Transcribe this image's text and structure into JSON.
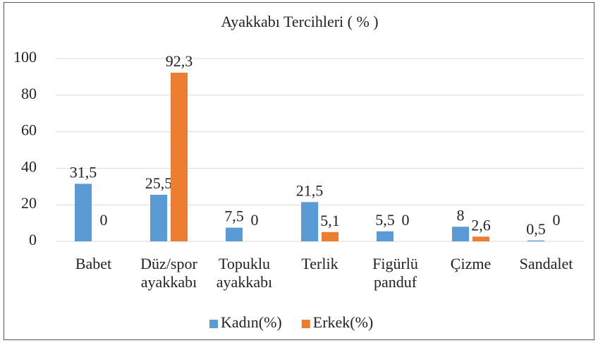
{
  "chart_data": {
    "type": "bar",
    "title": "Ayakkabı Tercihleri ( % )",
    "categories": [
      [
        "Babet"
      ],
      [
        "Düz/spor",
        "ayakkabı"
      ],
      [
        "Topuklu",
        "ayakkabı"
      ],
      [
        "Terlik"
      ],
      [
        "Figürlü",
        "panduf"
      ],
      [
        "Çizme"
      ],
      [
        "Sandalet"
      ]
    ],
    "series": [
      {
        "name": "Kadın(%)",
        "color": "#5b9bd5",
        "values": [
          31.5,
          25.5,
          7.5,
          21.5,
          5.5,
          8,
          0.5
        ],
        "value_labels": [
          "31,5",
          "25,5",
          "7,5",
          "21,5",
          "5,5",
          "8",
          "0,5"
        ]
      },
      {
        "name": "Erkek(%)",
        "color": "#ed7d31",
        "values": [
          0,
          92.3,
          0,
          5.1,
          0,
          2.6,
          0
        ],
        "value_labels": [
          "0",
          "92,3",
          "0",
          "5,1",
          "0",
          "2,6",
          "0"
        ]
      }
    ],
    "ylim": [
      0,
      100
    ],
    "yticks": [
      0,
      20,
      40,
      60,
      80,
      100
    ],
    "grid": true,
    "legend": "bottom"
  }
}
